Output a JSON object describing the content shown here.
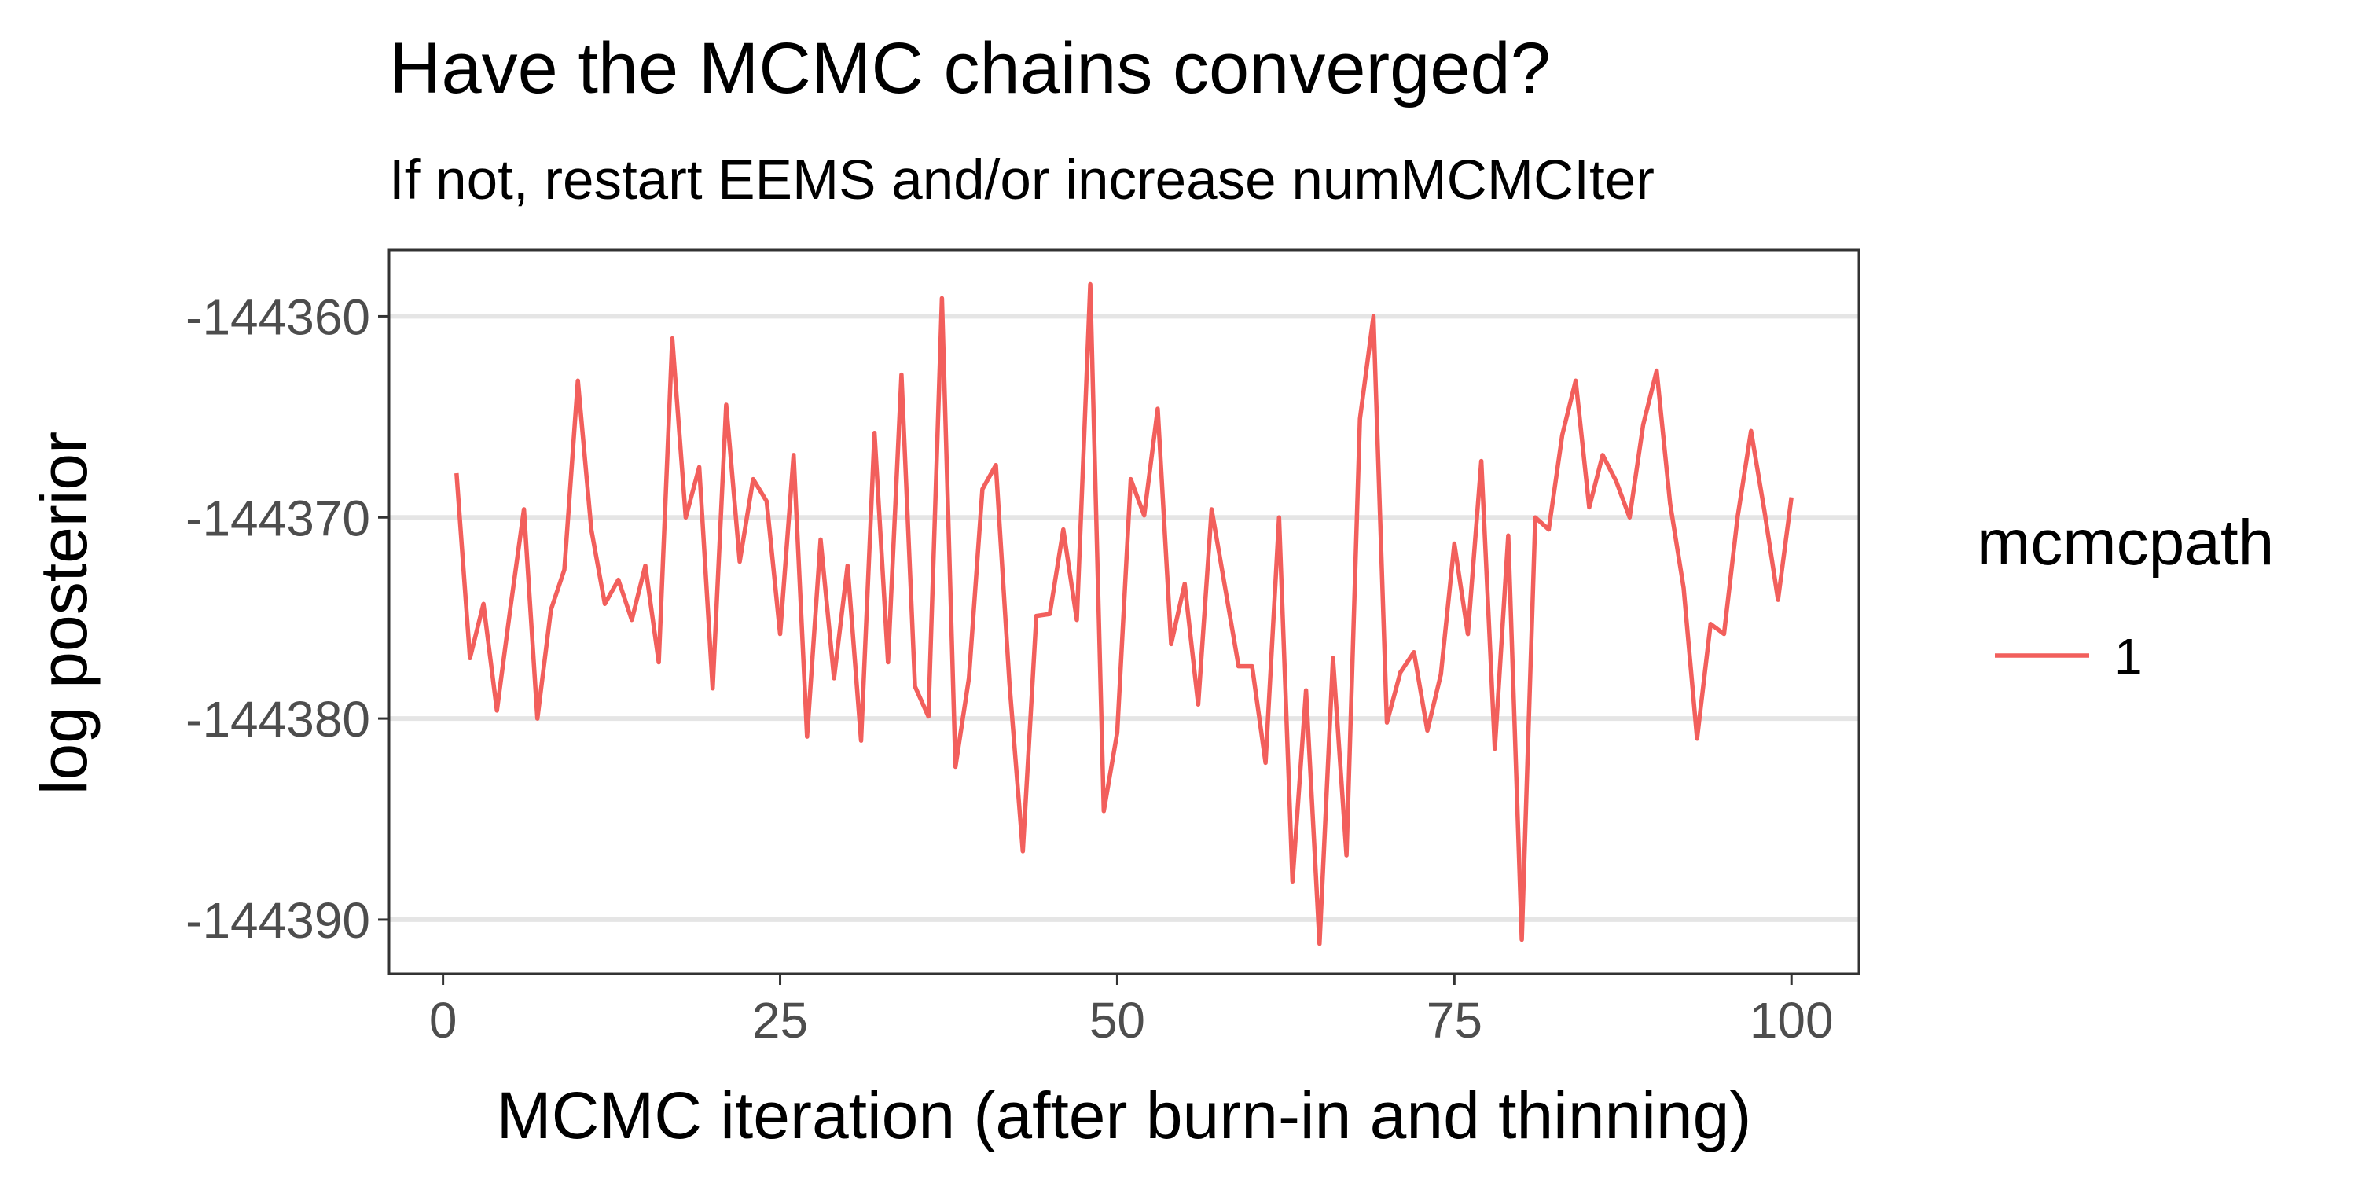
{
  "chart_data": {
    "type": "line",
    "title": "Have the MCMC chains converged?",
    "subtitle": "If not, restart EEMS and/or increase numMCMCIter",
    "xlabel": "MCMC iteration  (after burn-in and thinning)",
    "ylabel": "log posterior",
    "xlim": [
      -4,
      105
    ],
    "ylim": [
      -144392.7,
      -144356.7
    ],
    "x_ticks": [
      0,
      25,
      50,
      75,
      100
    ],
    "x_tick_labels": [
      "0",
      "25",
      "50",
      "75",
      "100"
    ],
    "y_ticks": [
      -144360,
      -144370,
      -144380,
      -144390
    ],
    "y_tick_labels": [
      "-144360",
      "-144370",
      "-144380",
      "-144390"
    ],
    "grid": "horizontal major",
    "legend": {
      "title": "mcmcpath",
      "position": "right",
      "entries": [
        "1"
      ]
    },
    "series": [
      {
        "name": "1",
        "color": "#f25f5c",
        "x": [
          1,
          2,
          3,
          4,
          5,
          6,
          7,
          8,
          9,
          10,
          11,
          12,
          13,
          14,
          15,
          16,
          17,
          18,
          19,
          20,
          21,
          22,
          23,
          24,
          25,
          26,
          27,
          28,
          29,
          30,
          31,
          32,
          33,
          34,
          35,
          36,
          37,
          38,
          39,
          40,
          41,
          42,
          43,
          44,
          45,
          46,
          47,
          48,
          49,
          50,
          51,
          52,
          53,
          54,
          55,
          56,
          57,
          58,
          59,
          60,
          61,
          62,
          63,
          64,
          65,
          66,
          67,
          68,
          69,
          70,
          71,
          72,
          73,
          74,
          75,
          76,
          77,
          78,
          79,
          80,
          81,
          82,
          83,
          84,
          85,
          86,
          87,
          88,
          89,
          90,
          91,
          92,
          93,
          94,
          95,
          96,
          97,
          98,
          99,
          100
        ],
        "y": [
          -144367.8,
          -144377.0,
          -144374.3,
          -144379.6,
          -144374.5,
          -144369.6,
          -144380.0,
          -144374.6,
          -144372.6,
          -144363.2,
          -144370.6,
          -144374.3,
          -144373.1,
          -144375.1,
          -144372.4,
          -144377.2,
          -144361.1,
          -144370.0,
          -144367.5,
          -144378.5,
          -144364.4,
          -144372.2,
          -144368.1,
          -144369.2,
          -144375.8,
          -144366.9,
          -144380.9,
          -144371.1,
          -144378.0,
          -144372.4,
          -144381.1,
          -144365.8,
          -144377.2,
          -144362.9,
          -144378.4,
          -144379.9,
          -144359.1,
          -144382.4,
          -144378.0,
          -144368.6,
          -144367.4,
          -144378.2,
          -144386.6,
          -144374.9,
          -144374.8,
          -144370.6,
          -144375.1,
          -144358.4,
          -144384.6,
          -144380.7,
          -144368.1,
          -144369.9,
          -144364.6,
          -144376.3,
          -144373.3,
          -144379.3,
          -144369.6,
          -144373.5,
          -144377.4,
          -144377.4,
          -144382.2,
          -144370.0,
          -144388.1,
          -144378.6,
          -144391.2,
          -144377.0,
          -144386.8,
          -144365.1,
          -144360.0,
          -144380.2,
          -144377.7,
          -144376.7,
          -144380.6,
          -144377.8,
          -144371.3,
          -144375.8,
          -144367.2,
          -144381.5,
          -144370.9,
          -144391.0,
          -144370.0,
          -144370.6,
          -144365.9,
          -144363.2,
          -144369.5,
          -144366.9,
          -144368.2,
          -144370.0,
          -144365.4,
          -144362.7,
          -144369.3,
          -144373.5,
          -144381.0,
          -144375.3,
          -144375.8,
          -144370.0,
          -144365.7,
          -144369.7,
          -144374.1,
          -144369.0
        ]
      }
    ]
  }
}
